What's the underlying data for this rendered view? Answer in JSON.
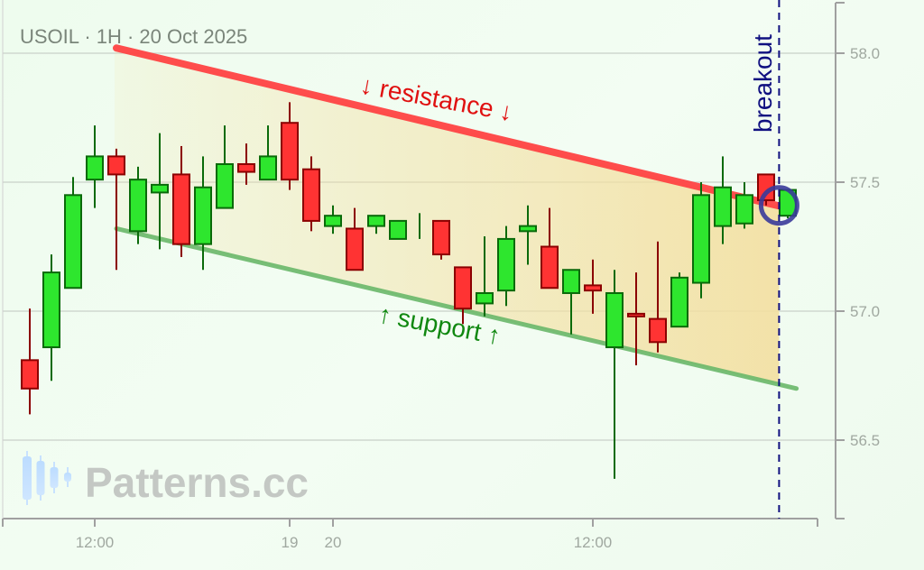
{
  "chart_data": {
    "type": "candlestick",
    "title": "USOIL · 1H · 20 Oct 2025",
    "ylim": [
      56.2,
      58.2
    ],
    "yticks": [
      58.0,
      57.5,
      57.0,
      56.5
    ],
    "ytick_labels": [
      "58.0",
      "57.5",
      "57.0",
      "56.5"
    ],
    "xtick_labels": [
      {
        "label": "12:00",
        "candle": 3
      },
      {
        "label": "19",
        "candle": 12
      },
      {
        "label": "20",
        "candle": 14
      },
      {
        "label": "12:00",
        "candle": 26
      }
    ],
    "grid": true,
    "colors": {
      "up": "#2ee62e",
      "up_edge": "#0a6a0a",
      "down": "#ff3333",
      "down_edge": "#8b0000",
      "resistance": "#ff4444",
      "support": "#6ab86a",
      "breakout": "#101080",
      "fill": "#f3dfa0"
    },
    "candles": [
      {
        "o": 56.81,
        "h": 57.01,
        "l": 56.6,
        "c": 56.7
      },
      {
        "o": 56.86,
        "h": 57.22,
        "l": 56.73,
        "c": 57.15
      },
      {
        "o": 57.09,
        "h": 57.52,
        "l": 57.09,
        "c": 57.45
      },
      {
        "o": 57.51,
        "h": 57.72,
        "l": 57.4,
        "c": 57.6
      },
      {
        "o": 57.6,
        "h": 57.63,
        "l": 57.16,
        "c": 57.53
      },
      {
        "o": 57.31,
        "h": 57.56,
        "l": 57.26,
        "c": 57.51
      },
      {
        "o": 57.46,
        "h": 57.69,
        "l": 57.24,
        "c": 57.49
      },
      {
        "o": 57.53,
        "h": 57.64,
        "l": 57.21,
        "c": 57.26
      },
      {
        "o": 57.26,
        "h": 57.6,
        "l": 57.16,
        "c": 57.48
      },
      {
        "o": 57.4,
        "h": 57.72,
        "l": 57.4,
        "c": 57.57
      },
      {
        "o": 57.57,
        "h": 57.65,
        "l": 57.49,
        "c": 57.54
      },
      {
        "o": 57.51,
        "h": 57.72,
        "l": 57.51,
        "c": 57.6
      },
      {
        "o": 57.73,
        "h": 57.81,
        "l": 57.47,
        "c": 57.51
      },
      {
        "o": 57.55,
        "h": 57.6,
        "l": 57.31,
        "c": 57.35
      },
      {
        "o": 57.33,
        "h": 57.41,
        "l": 57.3,
        "c": 57.37
      },
      {
        "o": 57.32,
        "h": 57.4,
        "l": 57.16,
        "c": 57.16
      },
      {
        "o": 57.33,
        "h": 57.37,
        "l": 57.3,
        "c": 57.37
      },
      {
        "o": 57.28,
        "h": 57.35,
        "l": 57.28,
        "c": 57.35
      },
      {
        "o": 57.3,
        "h": 57.38,
        "l": 57.28,
        "c": 57.3
      },
      {
        "o": 57.35,
        "h": 57.35,
        "l": 57.2,
        "c": 57.22
      },
      {
        "o": 57.17,
        "h": 57.17,
        "l": 56.95,
        "c": 57.01
      },
      {
        "o": 57.03,
        "h": 57.29,
        "l": 56.98,
        "c": 57.07
      },
      {
        "o": 57.08,
        "h": 57.33,
        "l": 57.02,
        "c": 57.28
      },
      {
        "o": 57.31,
        "h": 57.41,
        "l": 57.18,
        "c": 57.33
      },
      {
        "o": 57.25,
        "h": 57.4,
        "l": 57.09,
        "c": 57.09
      },
      {
        "o": 57.07,
        "h": 57.16,
        "l": 56.91,
        "c": 57.16
      },
      {
        "o": 57.1,
        "h": 57.2,
        "l": 56.99,
        "c": 57.08
      },
      {
        "o": 56.86,
        "h": 57.16,
        "l": 56.35,
        "c": 57.07
      },
      {
        "o": 56.99,
        "h": 57.15,
        "l": 56.79,
        "c": 56.98
      },
      {
        "o": 56.97,
        "h": 57.27,
        "l": 56.84,
        "c": 56.88
      },
      {
        "o": 56.94,
        "h": 57.15,
        "l": 56.94,
        "c": 57.13
      },
      {
        "o": 57.11,
        "h": 57.5,
        "l": 57.05,
        "c": 57.45
      },
      {
        "o": 57.33,
        "h": 57.6,
        "l": 57.26,
        "c": 57.48
      },
      {
        "o": 57.34,
        "h": 57.5,
        "l": 57.32,
        "c": 57.45
      },
      {
        "o": 57.53,
        "h": 57.53,
        "l": 57.41,
        "c": 57.43
      },
      {
        "o": 57.37,
        "h": 57.47,
        "l": 57.36,
        "c": 57.47
      }
    ],
    "resistance": {
      "label": "↓ resistance ↓",
      "from": {
        "candle": 4,
        "price": 58.02
      },
      "to": {
        "candle": 35,
        "price": 57.4
      }
    },
    "support": {
      "label": "↑ support ↑",
      "from": {
        "candle": 4,
        "price": 57.32
      },
      "to": {
        "candle": 35.4,
        "price": 56.7
      }
    },
    "breakout": {
      "label": "breakout",
      "candle": 34.6,
      "price": 57.41
    }
  },
  "watermark": "Patterns.cc"
}
